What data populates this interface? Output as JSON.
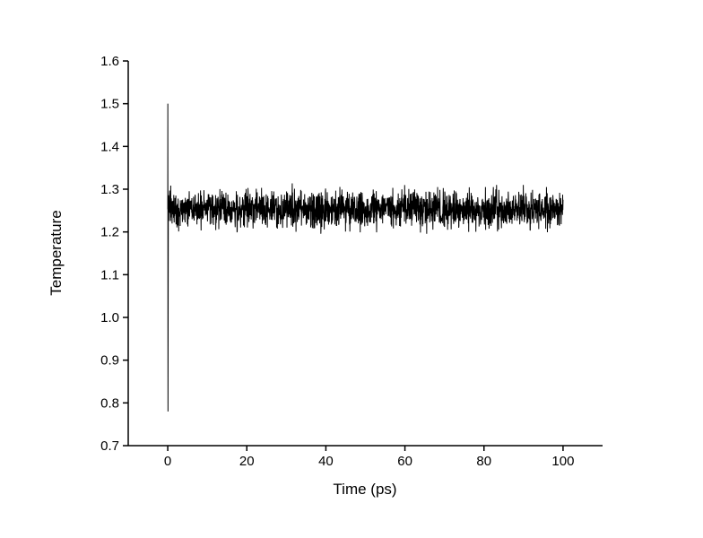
{
  "chart_data": {
    "type": "line",
    "title": "",
    "xlabel": "Time (ps)",
    "ylabel": "Temperature",
    "xlim": [
      -10,
      110
    ],
    "ylim": [
      0.7,
      1.6
    ],
    "xticks": [
      0,
      20,
      40,
      60,
      80,
      100
    ],
    "xtick_labels": [
      "0",
      "20",
      "40",
      "60",
      "80",
      "100"
    ],
    "yticks": [
      0.7,
      0.8,
      0.9,
      1.0,
      1.1,
      1.2,
      1.3,
      1.4,
      1.5,
      1.6
    ],
    "ytick_labels": [
      "0.7",
      "0.8",
      "0.9",
      "1.0",
      "1.1",
      "1.2",
      "1.3",
      "1.4",
      "1.5",
      "1.6"
    ],
    "grid": false,
    "legend": false,
    "line_color": "#000000",
    "axis_color": "#000000",
    "background": "#ffffff",
    "series": [
      {
        "name": "Temperature",
        "color": "#000000",
        "x_start": 0,
        "x_end": 100,
        "n_points": 2100,
        "mean": 1.253,
        "noise_std": 0.02,
        "seed": 42,
        "initial_spike": {
          "x": 0,
          "y_min": 0.78,
          "y_max": 1.5
        }
      }
    ]
  }
}
